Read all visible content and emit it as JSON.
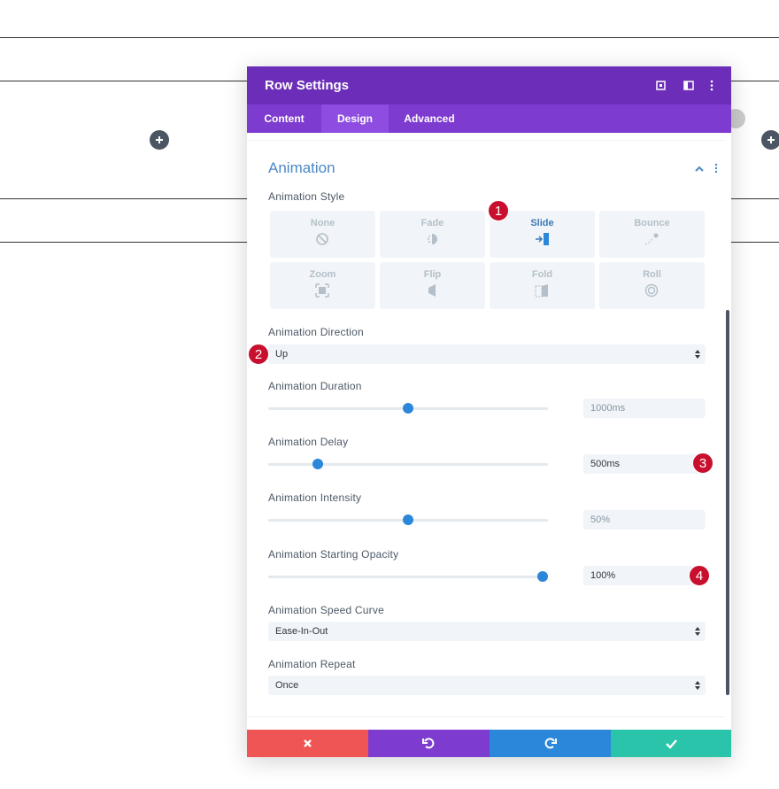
{
  "header": {
    "title": "Row Settings"
  },
  "tabs": [
    "Content",
    "Design",
    "Advanced"
  ],
  "section": {
    "title": "Animation",
    "style_label": "Animation Style",
    "styles": [
      "None",
      "Fade",
      "Slide",
      "Bounce",
      "Zoom",
      "Flip",
      "Fold",
      "Roll"
    ],
    "fields": [
      {
        "label": "Animation Direction",
        "value": "Up"
      },
      {
        "label": "Animation Duration",
        "value": "1000ms"
      },
      {
        "label": "Animation Delay",
        "value": "500ms"
      },
      {
        "label": "Animation Intensity",
        "value": "50%"
      },
      {
        "label": "Animation Starting Opacity",
        "value": "100%"
      },
      {
        "label": "Animation Speed Curve",
        "value": "Ease-In-Out"
      },
      {
        "label": "Animation Repeat",
        "value": "Once"
      }
    ]
  },
  "badges": [
    "1",
    "2",
    "3",
    "4"
  ]
}
